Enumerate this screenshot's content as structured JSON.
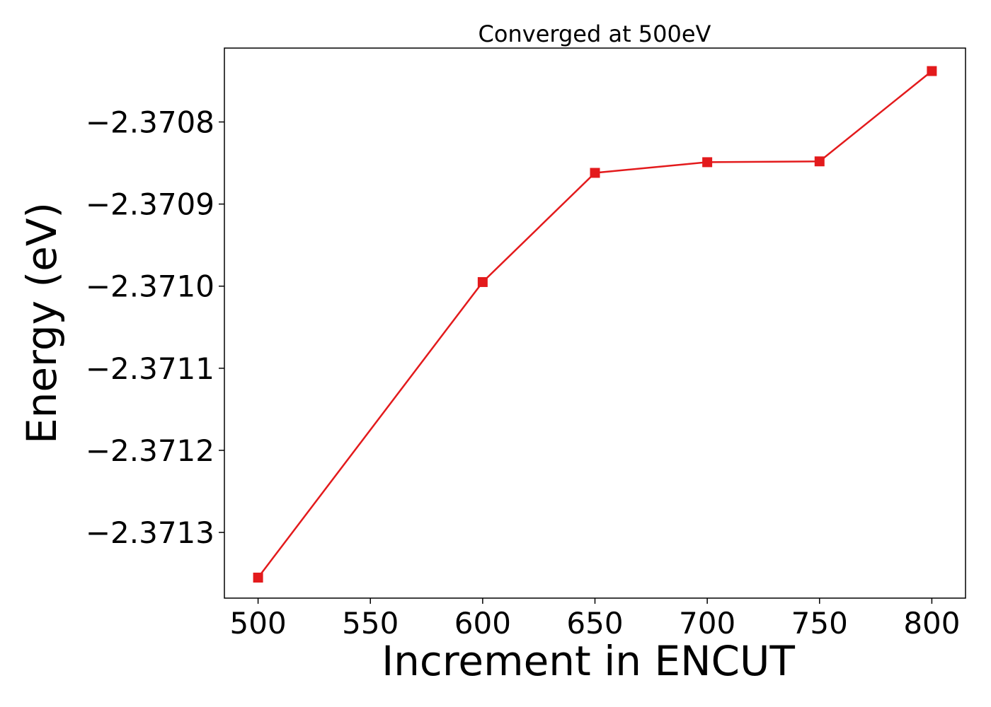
{
  "chart_data": {
    "type": "line",
    "title": "Converged at 500eV",
    "xlabel": "Increment in ENCUT",
    "ylabel": "Energy (eV)",
    "xlim": [
      485,
      815
    ],
    "ylim": [
      -2.37138,
      -2.37071
    ],
    "x_ticks": [
      500,
      550,
      600,
      650,
      700,
      750,
      800
    ],
    "x_tick_labels": [
      "500",
      "550",
      "600",
      "650",
      "700",
      "750",
      "800"
    ],
    "y_ticks": [
      -2.3708,
      -2.3709,
      -2.371,
      -2.3711,
      -2.3712,
      -2.3713
    ],
    "y_tick_labels": [
      "−2.3708",
      "−2.3709",
      "−2.3710",
      "−2.3711",
      "−2.3712",
      "−2.3713"
    ],
    "grid": false,
    "series": [
      {
        "color": "#e31a1c",
        "marker": "square",
        "x": [
          500,
          600,
          650,
          700,
          750,
          800
        ],
        "y": [
          -2.371355,
          -2.370995,
          -2.370862,
          -2.370849,
          -2.370848,
          -2.370738
        ]
      }
    ]
  }
}
